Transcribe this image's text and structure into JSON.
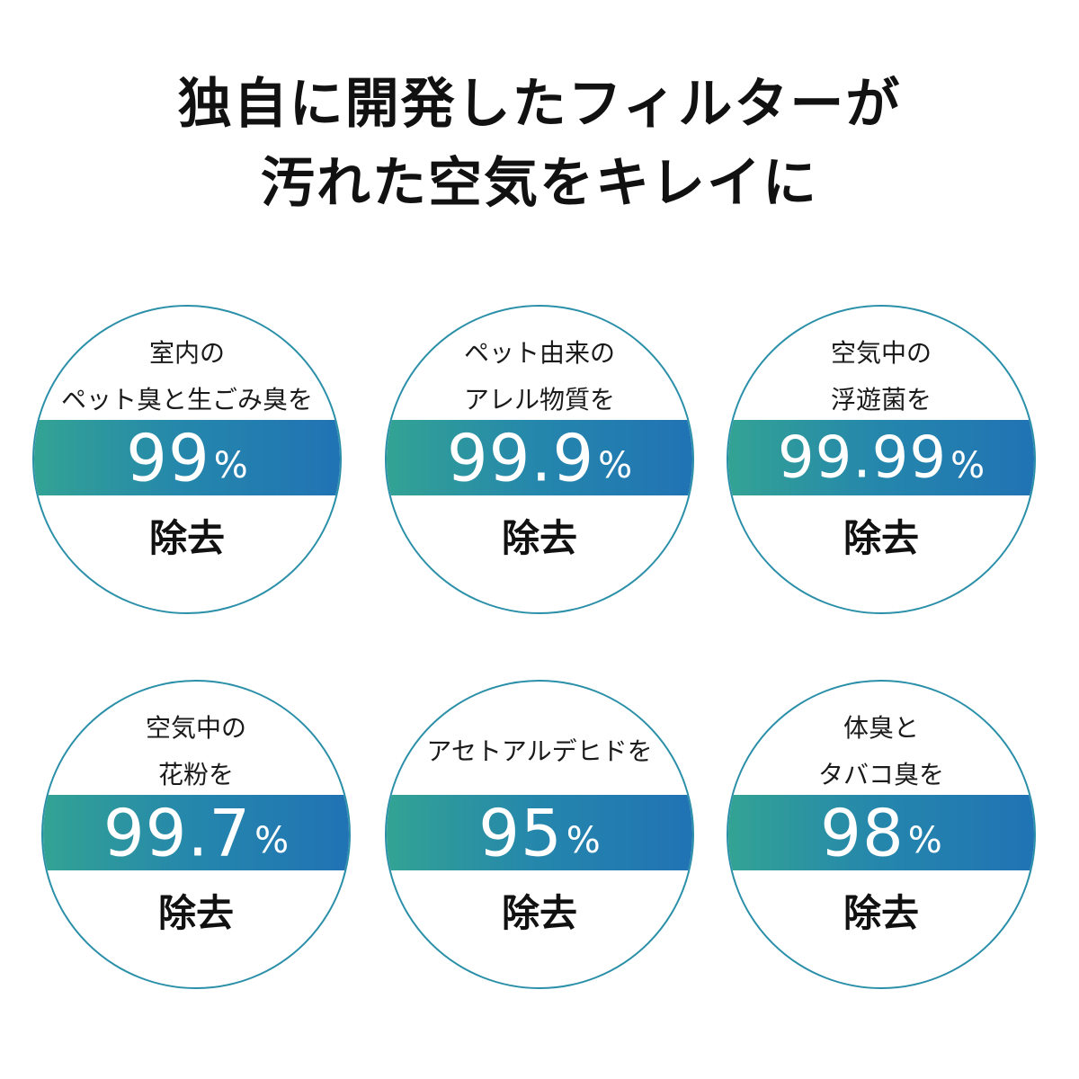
{
  "headline": {
    "line1": "独自に開発したフィルターが",
    "line2": "汚れた空気をキレイに"
  },
  "badges": [
    {
      "caption": [
        "室内の",
        "ペット臭と生ごみ臭を"
      ],
      "value": "99",
      "unit": "%",
      "action": "除去"
    },
    {
      "caption": [
        "ペット由来の",
        "アレル物質を"
      ],
      "value": "99.9",
      "unit": "%",
      "action": "除去"
    },
    {
      "caption": [
        "空気中の",
        "浮遊菌を"
      ],
      "value": "99.99",
      "unit": "%",
      "action": "除去"
    },
    {
      "caption": [
        "空気中の",
        "花粉を"
      ],
      "value": "99.7",
      "unit": "%",
      "action": "除去"
    },
    {
      "caption": [
        "アセトアルデヒドを"
      ],
      "value": "95",
      "unit": "%",
      "action": "除去"
    },
    {
      "caption": [
        "体臭と",
        "タバコ臭を"
      ],
      "value": "98",
      "unit": "%",
      "action": "除去"
    }
  ],
  "colors": {
    "ring": "#2a8fa8",
    "band_start": "#33a394",
    "band_end": "#2173b4"
  }
}
